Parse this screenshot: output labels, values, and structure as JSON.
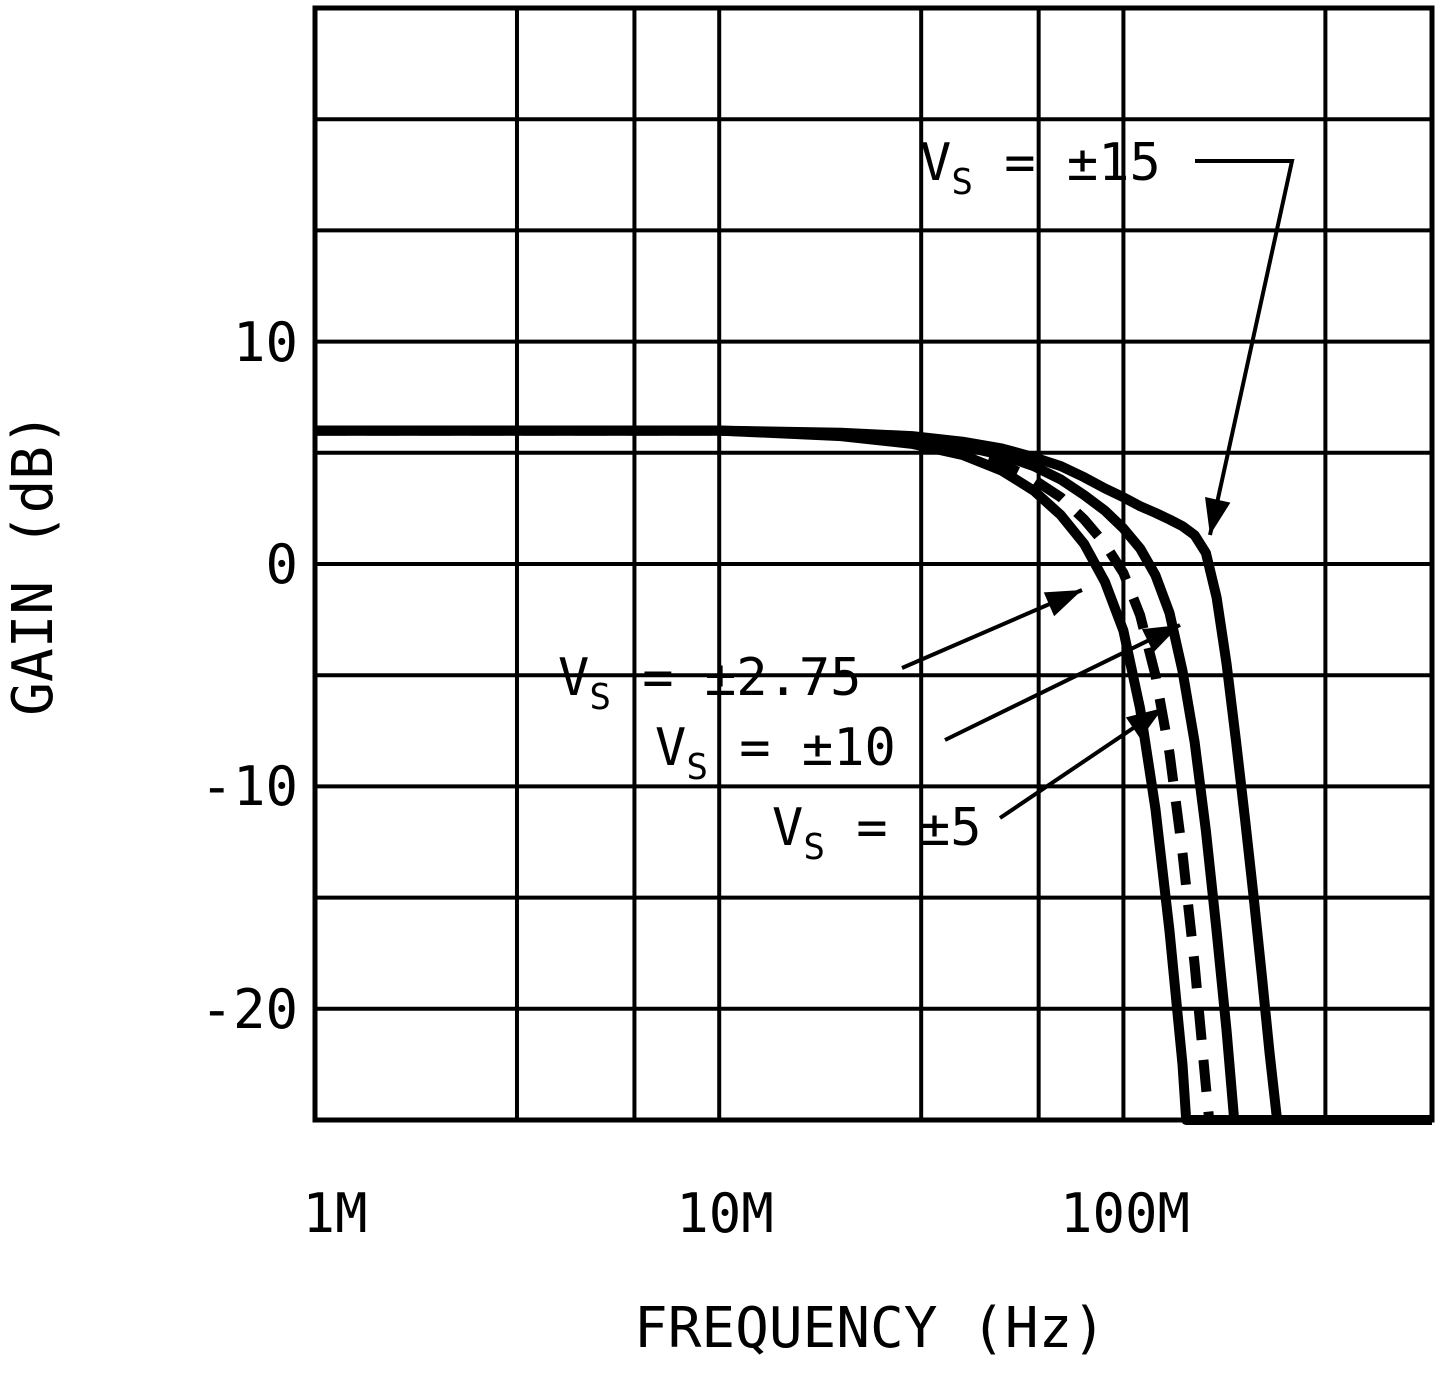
{
  "chart_data": {
    "type": "line",
    "title": "",
    "xlabel": "FREQUENCY (Hz)",
    "ylabel": "GAIN (dB)",
    "x_scale": "log",
    "x_range": [
      1000000.0,
      580000000.0
    ],
    "y_range": [
      -25,
      25
    ],
    "y_grid_step": 5,
    "x_grid_decade_multiples": [
      1,
      3.16,
      6.17
    ],
    "grid": true,
    "legend_position": "none",
    "x_ticks": [
      {
        "value": 1000000.0,
        "label": "1M"
      },
      {
        "value": 10000000.0,
        "label": "10M"
      },
      {
        "value": 100000000.0,
        "label": "100M"
      }
    ],
    "y_ticks": [
      {
        "value": 10,
        "label": "10"
      },
      {
        "value": 0,
        "label": "0"
      },
      {
        "value": -10,
        "label": "-10"
      },
      {
        "value": -20,
        "label": "-20"
      }
    ],
    "series": [
      {
        "name": "VS = ±15",
        "style": "solid",
        "points": [
          [
            1000000.0,
            6
          ],
          [
            3000000.0,
            6
          ],
          [
            10000000.0,
            6
          ],
          [
            20000000.0,
            5.9
          ],
          [
            30000000.0,
            5.75
          ],
          [
            40000000.0,
            5.5
          ],
          [
            50000000.0,
            5.2
          ],
          [
            60000000.0,
            4.8
          ],
          [
            70000000.0,
            4.4
          ],
          [
            80000000.0,
            3.9
          ],
          [
            90000000.0,
            3.4
          ],
          [
            100000000.0,
            3.0
          ],
          [
            110000000.0,
            2.6
          ],
          [
            120000000.0,
            2.3
          ],
          [
            130000000.0,
            2.0
          ],
          [
            140000000.0,
            1.7
          ],
          [
            150000000.0,
            1.3
          ],
          [
            160000000.0,
            0.5
          ],
          [
            170000000.0,
            -1.5
          ],
          [
            180000000.0,
            -4.5
          ],
          [
            190000000.0,
            -8
          ],
          [
            200000000.0,
            -11.5
          ],
          [
            210000000.0,
            -15
          ],
          [
            220000000.0,
            -18.5
          ],
          [
            230000000.0,
            -22
          ],
          [
            240000000.0,
            -25
          ],
          [
            580000000.0,
            -25
          ]
        ]
      },
      {
        "name": "VS = ±10",
        "style": "solid",
        "points": [
          [
            1000000.0,
            6
          ],
          [
            10000000.0,
            6
          ],
          [
            20000000.0,
            5.85
          ],
          [
            30000000.0,
            5.6
          ],
          [
            40000000.0,
            5.3
          ],
          [
            50000000.0,
            4.9
          ],
          [
            60000000.0,
            4.4
          ],
          [
            70000000.0,
            3.8
          ],
          [
            80000000.0,
            3.1
          ],
          [
            90000000.0,
            2.4
          ],
          [
            100000000.0,
            1.6
          ],
          [
            110000000.0,
            0.7
          ],
          [
            120000000.0,
            -0.5
          ],
          [
            130000000.0,
            -2.2
          ],
          [
            140000000.0,
            -4.8
          ],
          [
            150000000.0,
            -8
          ],
          [
            160000000.0,
            -12
          ],
          [
            170000000.0,
            -16.5
          ],
          [
            180000000.0,
            -21
          ],
          [
            188000000.0,
            -25
          ],
          [
            580000000.0,
            -25
          ]
        ]
      },
      {
        "name": "VS = ±5",
        "style": "dashed",
        "points": [
          [
            1000000.0,
            6
          ],
          [
            10000000.0,
            6
          ],
          [
            20000000.0,
            5.8
          ],
          [
            30000000.0,
            5.5
          ],
          [
            40000000.0,
            5.1
          ],
          [
            50000000.0,
            4.5
          ],
          [
            60000000.0,
            3.8
          ],
          [
            70000000.0,
            3.0
          ],
          [
            80000000.0,
            2.0
          ],
          [
            90000000.0,
            0.9
          ],
          [
            100000000.0,
            -0.4
          ],
          [
            110000000.0,
            -2.3
          ],
          [
            120000000.0,
            -5
          ],
          [
            130000000.0,
            -8.5
          ],
          [
            140000000.0,
            -13
          ],
          [
            150000000.0,
            -18
          ],
          [
            160000000.0,
            -23.5
          ],
          [
            163000000.0,
            -25
          ],
          [
            580000000.0,
            -25
          ]
        ]
      },
      {
        "name": "VS = ±2.75",
        "style": "solid",
        "points": [
          [
            1000000.0,
            6
          ],
          [
            10000000.0,
            6
          ],
          [
            20000000.0,
            5.75
          ],
          [
            30000000.0,
            5.4
          ],
          [
            40000000.0,
            4.9
          ],
          [
            50000000.0,
            4.2
          ],
          [
            60000000.0,
            3.3
          ],
          [
            70000000.0,
            2.2
          ],
          [
            80000000.0,
            0.9
          ],
          [
            90000000.0,
            -0.8
          ],
          [
            100000000.0,
            -3
          ],
          [
            110000000.0,
            -6.5
          ],
          [
            120000000.0,
            -11
          ],
          [
            130000000.0,
            -16.5
          ],
          [
            140000000.0,
            -22.5
          ],
          [
            143000000.0,
            -25
          ],
          [
            580000000.0,
            -25
          ]
        ]
      }
    ],
    "annotations": [
      {
        "v": "V",
        "sub": "S",
        "value": " = ±15"
      },
      {
        "v": "V",
        "sub": "S",
        "value": " = ±2.75"
      },
      {
        "v": "V",
        "sub": "S",
        "value": " = ±10"
      },
      {
        "v": "V",
        "sub": "S",
        "value": " = ±5"
      }
    ],
    "colors": {
      "line": "#000000",
      "grid": "#000000",
      "background": "#ffffff"
    }
  }
}
